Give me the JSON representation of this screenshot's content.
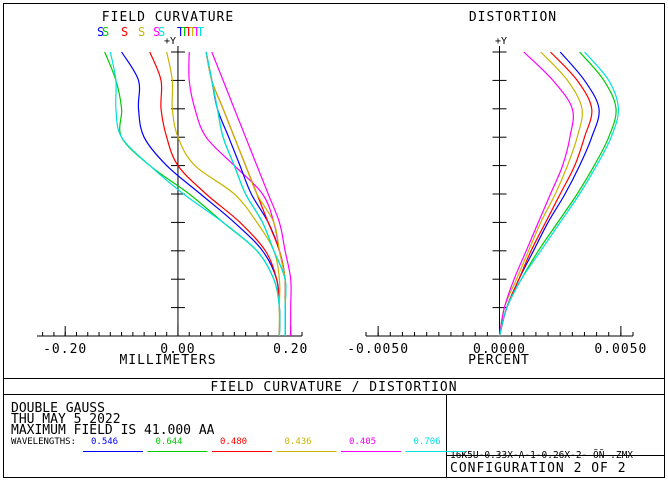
{
  "header_title": "FIELD CURVATURE / DISTORTION",
  "info": {
    "line1": "DOUBLE GAUSS",
    "line2": "THU MAY 5 2022",
    "line3": "MAXIMUM FIELD IS 41.000  AA",
    "wavelengths_label": "WAVELENGTHS:",
    "file_name": "16K5U-0.33X-A-1-0.26X-2- ÕÑ   .ZMX",
    "config": "CONFIGURATION 2 OF 2"
  },
  "wavelengths": [
    {
      "label": "0.546",
      "color": "#0000ff"
    },
    {
      "label": "0.644",
      "color": "#00cc00"
    },
    {
      "label": "0.480",
      "color": "#ff0000"
    },
    {
      "label": "0.436",
      "color": "#c8b400"
    },
    {
      "label": "0.405",
      "color": "#ff00ff"
    },
    {
      "label": "0.706",
      "color": "#00e0e0"
    }
  ],
  "chart_data": [
    {
      "type": "line",
      "title": "FIELD CURVATURE",
      "xlabel": "MILLIMETERS",
      "ylabel": "+Y",
      "xlim": [
        -0.25,
        0.22
      ],
      "ylim": [
        0,
        1
      ],
      "x_tick_labels": [
        "-0.20",
        "0.00",
        "0.20"
      ],
      "x_ticks": [
        -0.2,
        0.0,
        0.2
      ],
      "legend_labels": [
        "S",
        "S",
        "S",
        "S",
        "S",
        "S",
        "T",
        "T",
        "T",
        "T",
        "T",
        "T"
      ],
      "series": [
        {
          "name": "S",
          "color": "#0000ff",
          "points": [
            [
              0.18,
              0
            ],
            [
              0.18,
              0.1
            ],
            [
              0.175,
              0.2
            ],
            [
              0.15,
              0.3
            ],
            [
              0.1,
              0.4
            ],
            [
              0.04,
              0.5
            ],
            [
              -0.02,
              0.6
            ],
            [
              -0.06,
              0.7
            ],
            [
              -0.07,
              0.8
            ],
            [
              -0.07,
              0.9
            ],
            [
              -0.1,
              1.0
            ]
          ]
        },
        {
          "name": "S",
          "color": "#00cc00",
          "points": [
            [
              0.18,
              0
            ],
            [
              0.18,
              0.1
            ],
            [
              0.17,
              0.2
            ],
            [
              0.14,
              0.3
            ],
            [
              0.08,
              0.4
            ],
            [
              0.02,
              0.5
            ],
            [
              -0.05,
              0.6
            ],
            [
              -0.1,
              0.7
            ],
            [
              -0.1,
              0.8
            ],
            [
              -0.11,
              0.9
            ],
            [
              -0.13,
              1.0
            ]
          ]
        },
        {
          "name": "S",
          "color": "#ff0000",
          "points": [
            [
              0.18,
              0
            ],
            [
              0.18,
              0.1
            ],
            [
              0.175,
              0.2
            ],
            [
              0.155,
              0.3
            ],
            [
              0.11,
              0.4
            ],
            [
              0.05,
              0.5
            ],
            [
              0.0,
              0.6
            ],
            [
              -0.02,
              0.7
            ],
            [
              -0.03,
              0.8
            ],
            [
              -0.03,
              0.9
            ],
            [
              -0.05,
              1.0
            ]
          ]
        },
        {
          "name": "S",
          "color": "#c8b400",
          "points": [
            [
              0.18,
              0
            ],
            [
              0.18,
              0.1
            ],
            [
              0.18,
              0.2
            ],
            [
              0.17,
              0.3
            ],
            [
              0.14,
              0.4
            ],
            [
              0.1,
              0.5
            ],
            [
              0.03,
              0.6
            ],
            [
              0.0,
              0.7
            ],
            [
              -0.01,
              0.8
            ],
            [
              -0.01,
              0.9
            ],
            [
              -0.02,
              1.0
            ]
          ]
        },
        {
          "name": "S",
          "color": "#ff00ff",
          "points": [
            [
              0.19,
              0
            ],
            [
              0.19,
              0.1
            ],
            [
              0.19,
              0.2
            ],
            [
              0.18,
              0.3
            ],
            [
              0.17,
              0.4
            ],
            [
              0.15,
              0.5
            ],
            [
              0.1,
              0.6
            ],
            [
              0.05,
              0.7
            ],
            [
              0.03,
              0.8
            ],
            [
              0.02,
              0.9
            ],
            [
              0.02,
              1.0
            ]
          ]
        },
        {
          "name": "S",
          "color": "#00e0e0",
          "points": [
            [
              0.18,
              0
            ],
            [
              0.18,
              0.1
            ],
            [
              0.17,
              0.2
            ],
            [
              0.14,
              0.3
            ],
            [
              0.08,
              0.4
            ],
            [
              0.01,
              0.5
            ],
            [
              -0.05,
              0.6
            ],
            [
              -0.1,
              0.7
            ],
            [
              -0.11,
              0.8
            ],
            [
              -0.11,
              0.9
            ],
            [
              -0.12,
              1.0
            ]
          ]
        },
        {
          "name": "T",
          "color": "#0000ff",
          "points": [
            [
              0.19,
              0
            ],
            [
              0.19,
              0.1
            ],
            [
              0.19,
              0.2
            ],
            [
              0.18,
              0.3
            ],
            [
              0.16,
              0.4
            ],
            [
              0.13,
              0.5
            ],
            [
              0.11,
              0.6
            ],
            [
              0.09,
              0.7
            ],
            [
              0.07,
              0.8
            ],
            [
              0.06,
              0.9
            ],
            [
              0.05,
              1.0
            ]
          ]
        },
        {
          "name": "T",
          "color": "#00cc00",
          "points": [
            [
              0.19,
              0
            ],
            [
              0.19,
              0.1
            ],
            [
              0.19,
              0.2
            ],
            [
              0.17,
              0.3
            ],
            [
              0.15,
              0.4
            ],
            [
              0.12,
              0.5
            ],
            [
              0.1,
              0.6
            ],
            [
              0.08,
              0.7
            ],
            [
              0.07,
              0.8
            ],
            [
              0.06,
              0.9
            ],
            [
              0.05,
              1.0
            ]
          ]
        },
        {
          "name": "T",
          "color": "#ff0000",
          "points": [
            [
              0.19,
              0
            ],
            [
              0.19,
              0.1
            ],
            [
              0.19,
              0.2
            ],
            [
              0.18,
              0.3
            ],
            [
              0.16,
              0.4
            ],
            [
              0.14,
              0.5
            ],
            [
              0.12,
              0.6
            ],
            [
              0.1,
              0.7
            ],
            [
              0.08,
              0.8
            ],
            [
              0.06,
              0.9
            ],
            [
              0.05,
              1.0
            ]
          ]
        },
        {
          "name": "T",
          "color": "#c8b400",
          "points": [
            [
              0.19,
              0
            ],
            [
              0.19,
              0.1
            ],
            [
              0.19,
              0.2
            ],
            [
              0.18,
              0.3
            ],
            [
              0.17,
              0.4
            ],
            [
              0.14,
              0.5
            ],
            [
              0.12,
              0.6
            ],
            [
              0.1,
              0.7
            ],
            [
              0.08,
              0.8
            ],
            [
              0.06,
              0.9
            ],
            [
              0.05,
              1.0
            ]
          ]
        },
        {
          "name": "T",
          "color": "#ff00ff",
          "points": [
            [
              0.2,
              0
            ],
            [
              0.2,
              0.1
            ],
            [
              0.2,
              0.2
            ],
            [
              0.19,
              0.3
            ],
            [
              0.18,
              0.4
            ],
            [
              0.16,
              0.5
            ],
            [
              0.14,
              0.6
            ],
            [
              0.12,
              0.7
            ],
            [
              0.1,
              0.8
            ],
            [
              0.08,
              0.9
            ],
            [
              0.06,
              1.0
            ]
          ]
        },
        {
          "name": "T",
          "color": "#00e0e0",
          "points": [
            [
              0.19,
              0
            ],
            [
              0.19,
              0.1
            ],
            [
              0.19,
              0.2
            ],
            [
              0.17,
              0.3
            ],
            [
              0.15,
              0.4
            ],
            [
              0.12,
              0.5
            ],
            [
              0.1,
              0.6
            ],
            [
              0.08,
              0.7
            ],
            [
              0.07,
              0.8
            ],
            [
              0.06,
              0.9
            ],
            [
              0.05,
              1.0
            ]
          ]
        }
      ]
    },
    {
      "type": "line",
      "title": "DISTORTION",
      "xlabel": "PERCENT",
      "ylabel": "+Y",
      "xlim": [
        -0.0055,
        0.0055
      ],
      "ylim": [
        0,
        1
      ],
      "x_tick_labels": [
        "-0.0050",
        "0.0000",
        "0.0050"
      ],
      "x_ticks": [
        -0.005,
        0.0,
        0.005
      ],
      "series": [
        {
          "color": "#0000ff",
          "points": [
            [
              0,
              0
            ],
            [
              0.0003,
              0.1
            ],
            [
              0.0008,
              0.2
            ],
            [
              0.0014,
              0.3
            ],
            [
              0.002,
              0.4
            ],
            [
              0.0027,
              0.5
            ],
            [
              0.0033,
              0.6
            ],
            [
              0.0038,
              0.7
            ],
            [
              0.0041,
              0.8
            ],
            [
              0.0035,
              0.9
            ],
            [
              0.0025,
              1.0
            ]
          ]
        },
        {
          "color": "#00cc00",
          "points": [
            [
              0,
              0
            ],
            [
              0.0003,
              0.1
            ],
            [
              0.0009,
              0.2
            ],
            [
              0.0016,
              0.3
            ],
            [
              0.0024,
              0.4
            ],
            [
              0.0032,
              0.5
            ],
            [
              0.0039,
              0.6
            ],
            [
              0.0045,
              0.7
            ],
            [
              0.0048,
              0.8
            ],
            [
              0.0043,
              0.9
            ],
            [
              0.0033,
              1.0
            ]
          ]
        },
        {
          "color": "#ff0000",
          "points": [
            [
              0,
              0
            ],
            [
              0.0003,
              0.1
            ],
            [
              0.0008,
              0.2
            ],
            [
              0.0013,
              0.3
            ],
            [
              0.0019,
              0.4
            ],
            [
              0.0025,
              0.5
            ],
            [
              0.0031,
              0.6
            ],
            [
              0.0035,
              0.7
            ],
            [
              0.0038,
              0.8
            ],
            [
              0.0032,
              0.9
            ],
            [
              0.0021,
              1.0
            ]
          ]
        },
        {
          "color": "#c8b400",
          "points": [
            [
              0,
              0
            ],
            [
              0.0002,
              0.1
            ],
            [
              0.0007,
              0.2
            ],
            [
              0.0012,
              0.3
            ],
            [
              0.0017,
              0.4
            ],
            [
              0.0023,
              0.5
            ],
            [
              0.0028,
              0.6
            ],
            [
              0.0032,
              0.7
            ],
            [
              0.0034,
              0.8
            ],
            [
              0.0028,
              0.9
            ],
            [
              0.0017,
              1.0
            ]
          ]
        },
        {
          "color": "#ff00ff",
          "points": [
            [
              0,
              0
            ],
            [
              0.0002,
              0.1
            ],
            [
              0.0006,
              0.2
            ],
            [
              0.0011,
              0.3
            ],
            [
              0.0016,
              0.4
            ],
            [
              0.0021,
              0.5
            ],
            [
              0.0026,
              0.6
            ],
            [
              0.0029,
              0.7
            ],
            [
              0.003,
              0.8
            ],
            [
              0.0022,
              0.9
            ],
            [
              0.001,
              1.0
            ]
          ]
        },
        {
          "color": "#00e0e0",
          "points": [
            [
              0,
              0
            ],
            [
              0.0003,
              0.1
            ],
            [
              0.0009,
              0.2
            ],
            [
              0.0017,
              0.3
            ],
            [
              0.0025,
              0.4
            ],
            [
              0.0033,
              0.5
            ],
            [
              0.004,
              0.6
            ],
            [
              0.0046,
              0.7
            ],
            [
              0.0049,
              0.8
            ],
            [
              0.0045,
              0.9
            ],
            [
              0.0035,
              1.0
            ]
          ]
        }
      ]
    }
  ]
}
